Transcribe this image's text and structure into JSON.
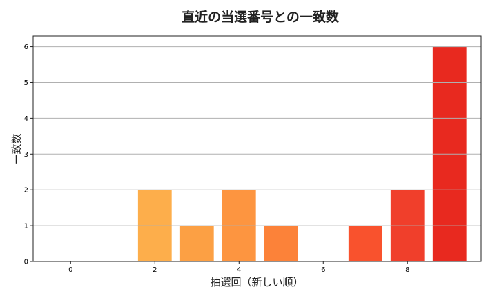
{
  "chart_data": {
    "type": "bar",
    "title": "直近の当選番号との一致数",
    "xlabel": "抽選回（新しい順）",
    "ylabel": "一致数",
    "x": [
      0,
      1,
      2,
      3,
      4,
      5,
      6,
      7,
      8,
      9
    ],
    "values": [
      0,
      0,
      2,
      1,
      2,
      1,
      0,
      1,
      2,
      6
    ],
    "colors": [
      "#fec15a",
      "#feb852",
      "#fdae4b",
      "#fca044",
      "#fd9540",
      "#fc8239",
      "#fb6a33",
      "#f9522d",
      "#f03f2b",
      "#e8291f"
    ],
    "xticks": [
      0,
      2,
      4,
      6,
      8
    ],
    "yticks": [
      0,
      1,
      2,
      3,
      4,
      5,
      6
    ],
    "xlim": [
      -0.89,
      9.75
    ],
    "ylim": [
      0,
      6.3
    ],
    "grid": "y"
  }
}
